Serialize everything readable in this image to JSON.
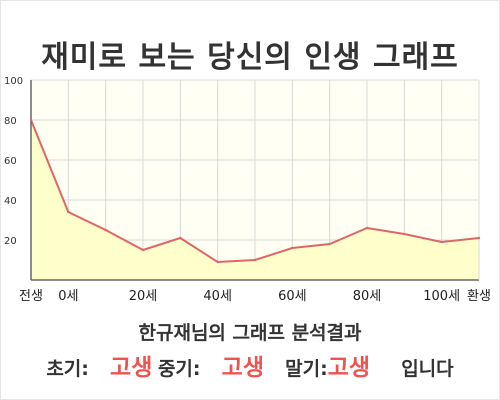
{
  "page": {
    "title": "재미로 보는 당신의 인생 그래프",
    "summary": "한규재님의 그래프 분석결과",
    "stages": [
      {
        "label": "초기:",
        "value": "고생"
      },
      {
        "label": "중기:",
        "value": "고생"
      },
      {
        "label": "말기:",
        "value": "고생"
      }
    ],
    "closing": "입니다"
  },
  "chart_data": {
    "type": "area",
    "x": [
      "전생",
      "0세",
      "10세",
      "20세",
      "30세",
      "40세",
      "50세",
      "60세",
      "70세",
      "80세",
      "90세",
      "100세",
      "환생"
    ],
    "values": [
      80,
      34,
      25,
      15,
      21,
      9,
      10,
      16,
      18,
      26,
      23,
      19,
      21
    ],
    "xtick_labels": [
      "전생",
      "0세",
      "20세",
      "40세",
      "60세",
      "80세",
      "100세",
      "환생"
    ],
    "yticks": [
      20,
      40,
      60,
      80,
      100
    ],
    "ylim": [
      0,
      100
    ],
    "grid": true,
    "colors": {
      "line": "#e06666",
      "fill": "#ffffcc",
      "grid": "#d8d8d8",
      "axis": "#666666"
    }
  }
}
